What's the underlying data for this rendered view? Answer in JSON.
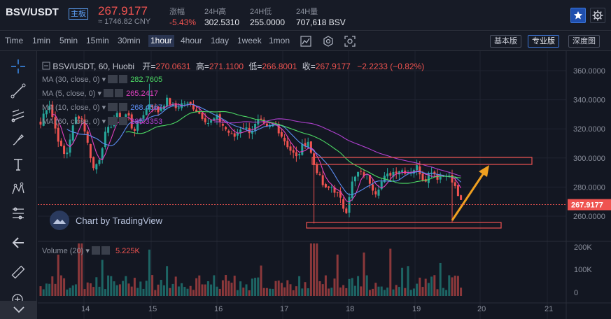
{
  "header": {
    "pair": "BSV/USDT",
    "board": "主板",
    "price": "267.9177",
    "cny": "≈ 1746.82 CNY",
    "stats": [
      {
        "label": "涨幅",
        "value": "-5.43%",
        "color": "#ef5350"
      },
      {
        "label": "24H高",
        "value": "302.5310",
        "color": "#e6e8ee"
      },
      {
        "label": "24H低",
        "value": "255.0000",
        "color": "#e6e8ee"
      },
      {
        "label": "24H量",
        "value": "707,618 BSV",
        "color": "#e6e8ee"
      }
    ],
    "star_icon": "star-icon",
    "settings_icon": "gear-icon"
  },
  "toolbar": {
    "intervals": [
      "Time",
      "1min",
      "5min",
      "15min",
      "30min",
      "1hour",
      "4hour",
      "1day",
      "1week",
      "1mon"
    ],
    "active_interval": "1hour",
    "versions": [
      "基本版",
      "专业版",
      "深度图"
    ],
    "active_version": "专业版"
  },
  "legend": {
    "title": "BSV/USDT, 60, Huobi",
    "open_label": "开=",
    "open": "270.0631",
    "high_label": "高=",
    "high": "271.1100",
    "low_label": "低=",
    "low": "266.8001",
    "close_label": "收=",
    "close": "267.9177",
    "change": "−2.2233 (−0.82%)"
  },
  "ma": [
    {
      "label": "MA (30, close, 0)",
      "value": "282.7605",
      "color": "#4cd964"
    },
    {
      "label": "MA (5, close, 0)",
      "value": "265.2417",
      "color": "#e040c0"
    },
    {
      "label": "MA (10, close, 0)",
      "value": "268.4567",
      "color": "#5b8cf0"
    },
    {
      "label": "MA (60, close, 0)",
      "value": "285.3353",
      "color": "#b040d0"
    }
  ],
  "volume": {
    "label": "Volume (20)",
    "value": "5.225K"
  },
  "watermark": "Chart by TradingView",
  "price_axis": [
    "360.0000",
    "340.0000",
    "320.0000",
    "300.0000",
    "280.0000",
    "260.0000"
  ],
  "current_price_tag": "267.9177",
  "volume_axis": [
    "200K",
    "100K",
    "0"
  ],
  "time_axis": [
    "14",
    "15",
    "16",
    "17",
    "18",
    "19",
    "20",
    "21"
  ],
  "colors": {
    "up": "#26a69a",
    "down": "#ef5350",
    "bg": "#131722",
    "accent": "#3d77d9",
    "annotation": "#f0a020"
  }
}
